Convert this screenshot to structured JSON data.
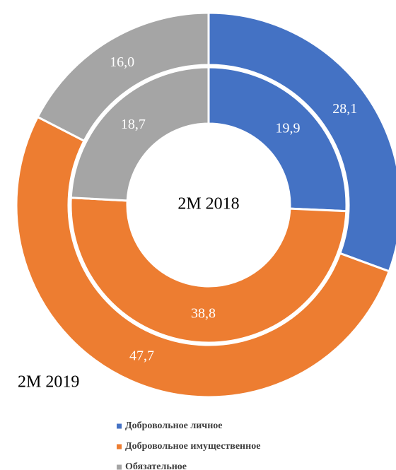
{
  "chart_data": {
    "type": "donut",
    "categories": [
      "Добровольное личное",
      "Добровольное имущественное",
      "Обязательное"
    ],
    "colors": [
      "#4472c4",
      "#ed7d31",
      "#a5a5a5"
    ],
    "series": [
      {
        "name": "2M 2019",
        "values": [
          28.1,
          47.7,
          16.0
        ],
        "value_labels": [
          "28,1",
          "47,7",
          "16,0"
        ]
      },
      {
        "name": "2M 2018",
        "values": [
          19.9,
          38.8,
          18.7
        ],
        "value_labels": [
          "19,9",
          "38,8",
          "18,7"
        ]
      }
    ]
  }
}
